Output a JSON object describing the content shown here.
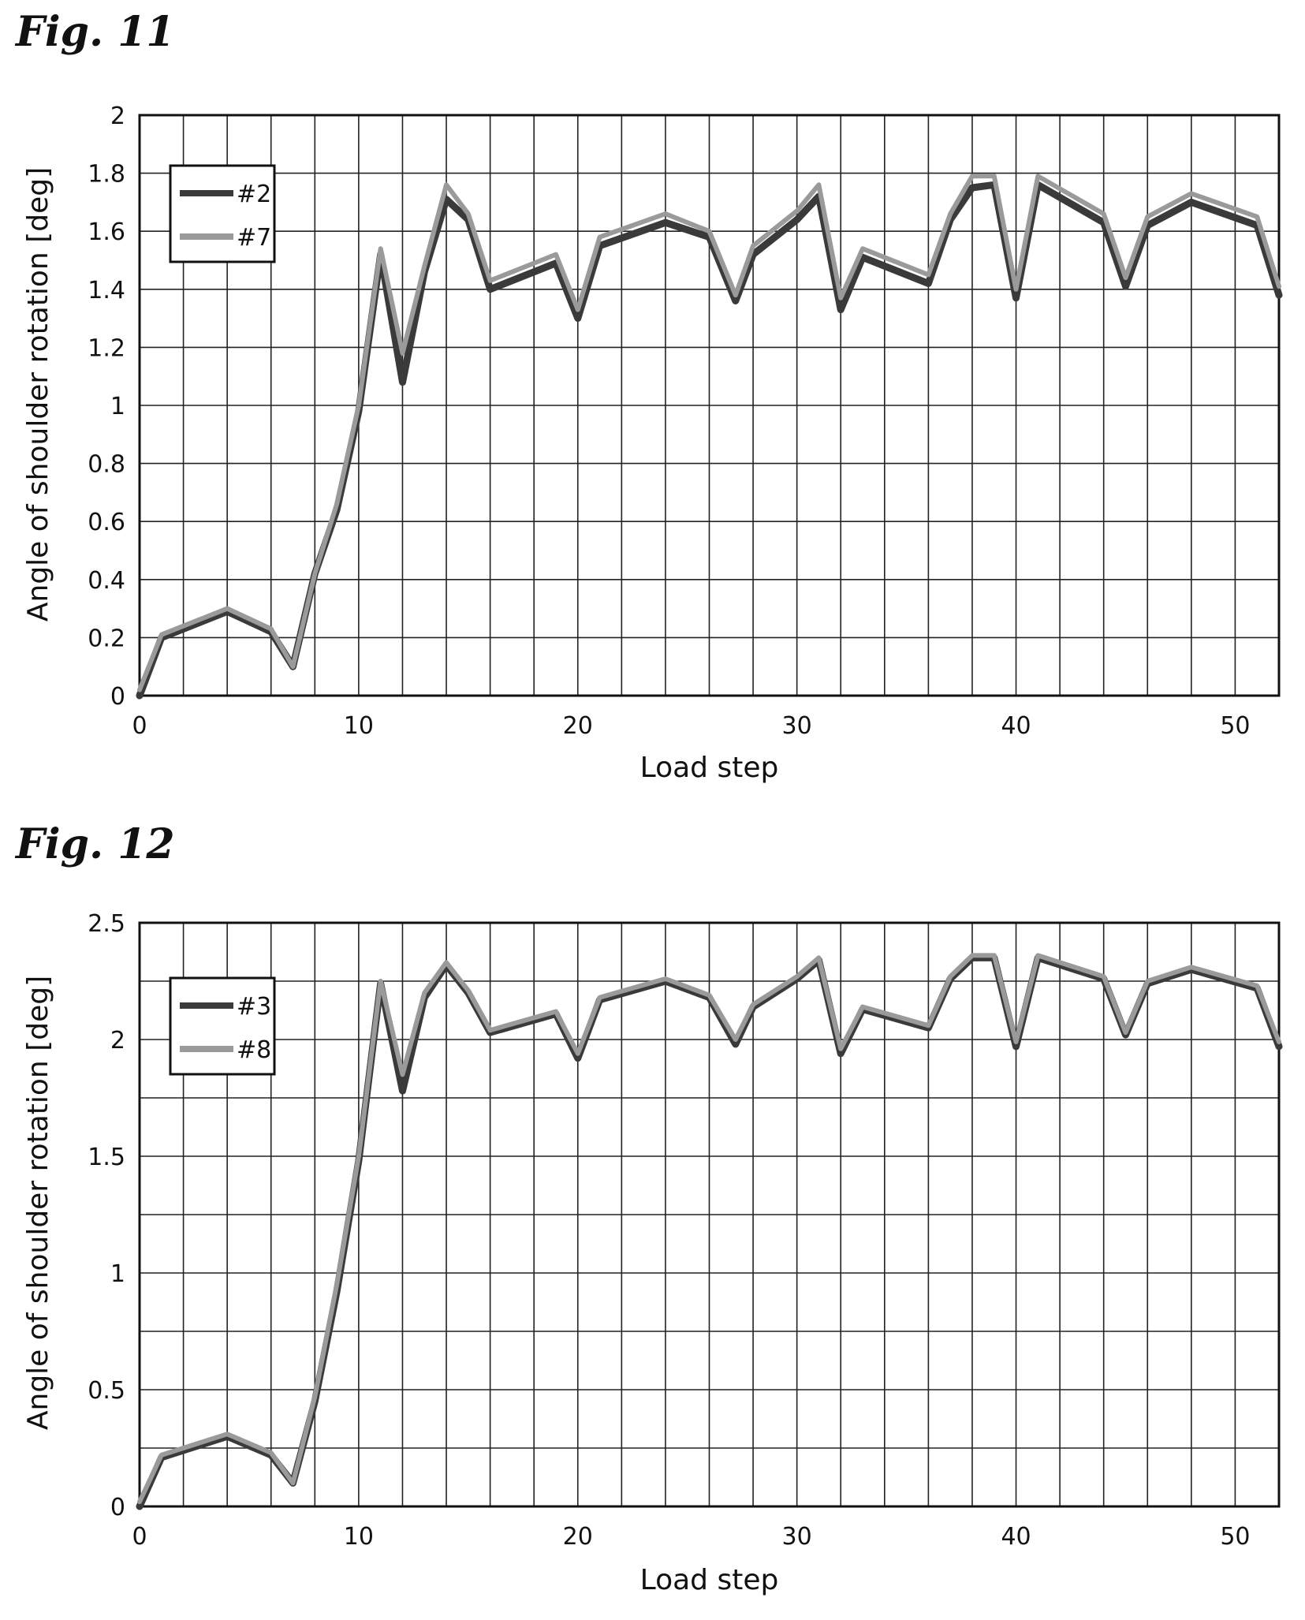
{
  "figures": [
    {
      "fig_label": "Fig. 11",
      "chart_data": {
        "type": "line",
        "xlabel": "Load step",
        "ylabel": "Angle of shoulder rotation [deg]",
        "xlim": [
          0,
          52
        ],
        "ylim": [
          0,
          2
        ],
        "xticks": [
          0,
          10,
          20,
          30,
          40,
          50
        ],
        "yticks": [
          0,
          0.2,
          0.4,
          0.6,
          0.8,
          1,
          1.2,
          1.4,
          1.6,
          1.8,
          2
        ],
        "ytick_labels": [
          "0",
          "0.2",
          "0.4",
          "0.6",
          "0.8",
          "1",
          "1.2",
          "1.4",
          "1.6",
          "1.8",
          "2"
        ],
        "grid": true,
        "legend_position": "top-left",
        "series": [
          {
            "name": "#2",
            "color": "#3a3a3a",
            "x": [
              0,
              1,
              4,
              6,
              7,
              8,
              9,
              10,
              11,
              12,
              13,
              14,
              15,
              16,
              19,
              20,
              21,
              24,
              26,
              27.2,
              28,
              30,
              31,
              32,
              33,
              36,
              37,
              38,
              39,
              40,
              41,
              44,
              45,
              46,
              48,
              51,
              52
            ],
            "y": [
              0,
              0.2,
              0.29,
              0.22,
              0.1,
              0.42,
              0.64,
              0.98,
              1.52,
              1.08,
              1.46,
              1.71,
              1.64,
              1.4,
              1.49,
              1.3,
              1.55,
              1.63,
              1.58,
              1.36,
              1.52,
              1.64,
              1.72,
              1.33,
              1.51,
              1.42,
              1.64,
              1.75,
              1.76,
              1.37,
              1.76,
              1.63,
              1.41,
              1.62,
              1.7,
              1.62,
              1.38
            ]
          },
          {
            "name": "#7",
            "color": "#9a9a9a",
            "x": [
              0,
              1,
              4,
              6,
              7,
              8,
              9,
              10,
              11,
              12,
              13,
              14,
              15,
              16,
              19,
              20,
              21,
              24,
              26,
              27.2,
              28,
              30,
              31,
              32,
              33,
              36,
              37,
              38,
              39,
              40,
              41,
              44,
              45,
              46,
              48,
              51,
              52
            ],
            "y": [
              0.02,
              0.21,
              0.3,
              0.23,
              0.1,
              0.42,
              0.66,
              1.0,
              1.54,
              1.18,
              1.48,
              1.76,
              1.66,
              1.43,
              1.52,
              1.33,
              1.58,
              1.66,
              1.6,
              1.38,
              1.55,
              1.67,
              1.76,
              1.37,
              1.54,
              1.45,
              1.66,
              1.79,
              1.79,
              1.4,
              1.79,
              1.66,
              1.44,
              1.65,
              1.73,
              1.65,
              1.41
            ]
          }
        ]
      }
    },
    {
      "fig_label": "Fig. 12",
      "chart_data": {
        "type": "line",
        "xlabel": "Load step",
        "ylabel": "Angle of shoulder rotation [deg]",
        "xlim": [
          0,
          52
        ],
        "ylim": [
          0,
          2.5
        ],
        "xticks": [
          0,
          10,
          20,
          30,
          40,
          50
        ],
        "yticks": [
          0,
          0.5,
          1,
          1.5,
          2,
          2.5
        ],
        "ytick_labels": [
          "0",
          "0.5",
          "1",
          "1.5",
          "2",
          "2.5"
        ],
        "grid": true,
        "legend_position": "top-left",
        "series": [
          {
            "name": "#3",
            "color": "#3a3a3a",
            "x": [
              0,
              1,
              4,
              6,
              7,
              8,
              9,
              10,
              11,
              12,
              13,
              14,
              15,
              16,
              19,
              20,
              21,
              24,
              26,
              27.2,
              28,
              30,
              31,
              32,
              33,
              36,
              37,
              38,
              39,
              40,
              41,
              44,
              45,
              46,
              48,
              51,
              52
            ],
            "y": [
              0,
              0.21,
              0.3,
              0.22,
              0.1,
              0.45,
              0.92,
              1.48,
              2.24,
              1.78,
              2.18,
              2.32,
              2.2,
              2.03,
              2.11,
              1.92,
              2.17,
              2.25,
              2.18,
              1.98,
              2.14,
              2.26,
              2.34,
              1.94,
              2.13,
              2.05,
              2.26,
              2.35,
              2.35,
              1.97,
              2.35,
              2.26,
              2.02,
              2.24,
              2.3,
              2.22,
              1.97
            ]
          },
          {
            "name": "#8",
            "color": "#9a9a9a",
            "x": [
              0,
              1,
              4,
              6,
              7,
              8,
              9,
              10,
              11,
              12,
              13,
              14,
              15,
              16,
              19,
              20,
              21,
              24,
              26,
              27.2,
              28,
              30,
              31,
              32,
              33,
              36,
              37,
              38,
              39,
              40,
              41,
              44,
              45,
              46,
              48,
              51,
              52
            ],
            "y": [
              0.02,
              0.22,
              0.31,
              0.23,
              0.1,
              0.47,
              0.95,
              1.5,
              2.25,
              1.85,
              2.2,
              2.33,
              2.21,
              2.04,
              2.12,
              1.94,
              2.18,
              2.26,
              2.19,
              2.0,
              2.15,
              2.27,
              2.35,
              1.96,
              2.14,
              2.06,
              2.27,
              2.36,
              2.36,
              1.99,
              2.36,
              2.27,
              2.03,
              2.25,
              2.31,
              2.23,
              1.99
            ]
          }
        ]
      }
    }
  ]
}
